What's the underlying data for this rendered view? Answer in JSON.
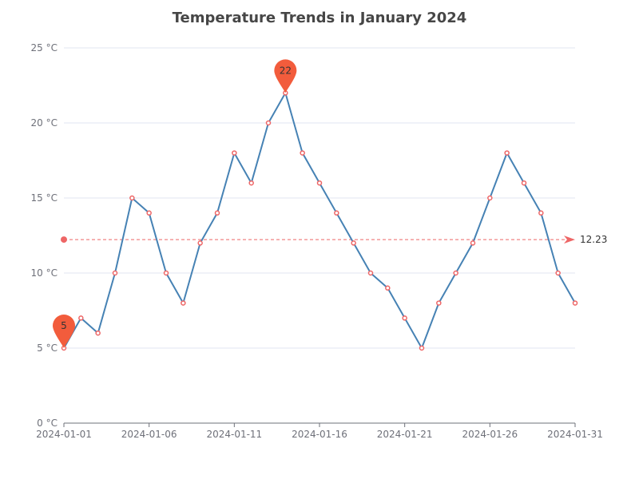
{
  "chart_data": {
    "type": "line",
    "title": "Temperature Trends in January 2024",
    "xlabel": "",
    "ylabel": "",
    "y_unit": "°C",
    "ylim": [
      0,
      25
    ],
    "y_ticks": [
      "0 °C",
      "5 °C",
      "10 °C",
      "15 °C",
      "20 °C",
      "25 °C"
    ],
    "x_tick_labels": [
      "2024-01-01",
      "2024-01-06",
      "2024-01-11",
      "2024-01-16",
      "2024-01-21",
      "2024-01-26",
      "2024-01-31"
    ],
    "grid": "horizontal",
    "legend": "none",
    "x": [
      "2024-01-01",
      "2024-01-02",
      "2024-01-03",
      "2024-01-04",
      "2024-01-05",
      "2024-01-06",
      "2024-01-07",
      "2024-01-08",
      "2024-01-09",
      "2024-01-10",
      "2024-01-11",
      "2024-01-12",
      "2024-01-13",
      "2024-01-14",
      "2024-01-15",
      "2024-01-16",
      "2024-01-17",
      "2024-01-18",
      "2024-01-19",
      "2024-01-20",
      "2024-01-21",
      "2024-01-22",
      "2024-01-23",
      "2024-01-24",
      "2024-01-25",
      "2024-01-26",
      "2024-01-27",
      "2024-01-28",
      "2024-01-29",
      "2024-01-30",
      "2024-01-31"
    ],
    "series": [
      {
        "values": [
          5,
          7,
          6,
          10,
          15,
          14,
          10,
          8,
          12,
          14,
          18,
          16,
          20,
          22,
          18,
          16,
          14,
          12,
          10,
          9,
          7,
          5,
          8,
          10,
          12,
          15,
          18,
          16,
          14,
          10,
          8
        ],
        "color": "#4682b4"
      }
    ],
    "mark_points": [
      {
        "type": "max",
        "x": "2024-01-14",
        "value": 22,
        "label": "22"
      },
      {
        "type": "min",
        "x": "2024-01-01",
        "value": 5,
        "label": "5"
      }
    ],
    "mark_line": {
      "type": "average",
      "value": 12.23,
      "label": "12.23"
    },
    "colors": {
      "line": "#4682b4",
      "marker": "#ee6666",
      "pin": "#f25c3c",
      "avg_line": "#ee6666",
      "grid": "#e0e6f1",
      "axis": "#6e7079"
    }
  }
}
